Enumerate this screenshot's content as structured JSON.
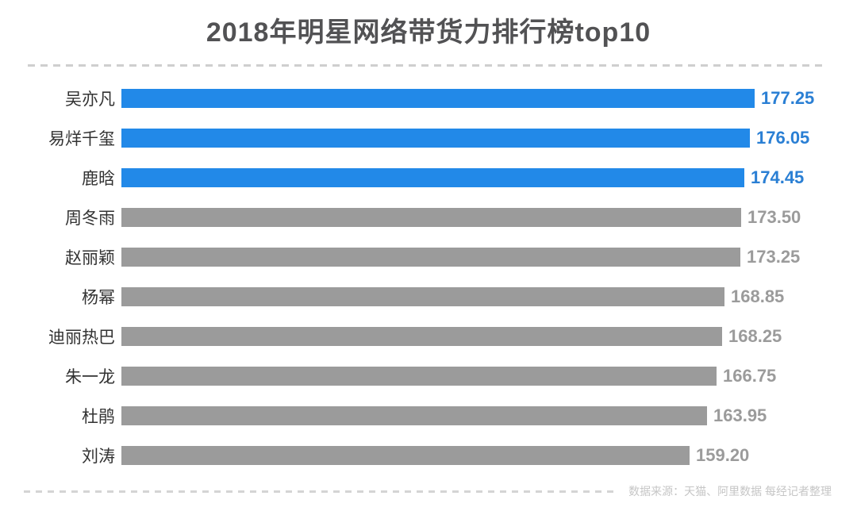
{
  "title": "2018年明星网络带货力排行榜top10",
  "footer": {
    "source_note": "数据来源：天猫、阿里数据  每经记者整理"
  },
  "colors": {
    "highlight_bar": "#2289e8",
    "highlight_value": "#2a7fd4",
    "normal_bar": "#9b9b9b",
    "normal_value": "#9b9b9b",
    "label_text": "#323232",
    "title_text": "#525254",
    "dash": "#cfcfcf",
    "footer_text": "#c6c6c6"
  },
  "chart_data": {
    "type": "bar",
    "orientation": "horizontal",
    "title": "2018年明星网络带货力排行榜top10",
    "categories": [
      "吴亦凡",
      "易烊千玺",
      "鹿晗",
      "周冬雨",
      "赵丽颖",
      "杨幂",
      "迪丽热巴",
      "朱一龙",
      "杜鹃",
      "刘涛"
    ],
    "values": [
      177.25,
      176.05,
      174.45,
      173.5,
      173.25,
      168.85,
      168.25,
      166.75,
      163.95,
      159.2
    ],
    "value_labels": [
      "177.25",
      "176.05",
      "174.45",
      "173.50",
      "173.25",
      "168.85",
      "168.25",
      "166.75",
      "163.95",
      "159.20"
    ],
    "highlighted": [
      true,
      true,
      true,
      false,
      false,
      false,
      false,
      false,
      false,
      false
    ],
    "xlim": [
      0,
      180
    ],
    "grid": false,
    "legend": false,
    "source": "数据来源：天猫、阿里数据  每经记者整理"
  }
}
